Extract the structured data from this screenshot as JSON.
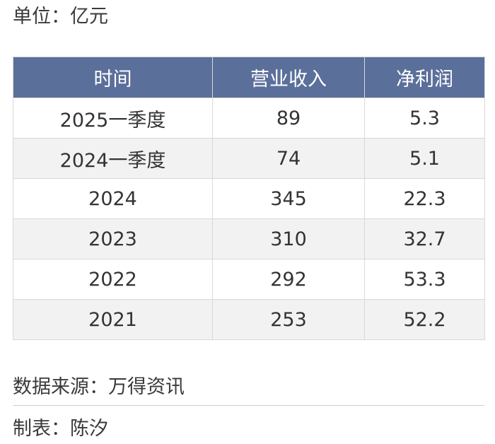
{
  "unit_label": "单位：亿元",
  "chart_data": {
    "type": "table",
    "columns": [
      "时间",
      "营业收入",
      "净利润"
    ],
    "rows": [
      [
        "2025一季度",
        "89",
        "5.3"
      ],
      [
        "2024一季度",
        "74",
        "5.1"
      ],
      [
        "2024",
        "345",
        "22.3"
      ],
      [
        "2023",
        "310",
        "32.7"
      ],
      [
        "2022",
        "292",
        "53.3"
      ],
      [
        "2021",
        "253",
        "52.2"
      ]
    ]
  },
  "source_label": "数据来源：万得资讯",
  "maker_label": "制表：陈汐",
  "colors": {
    "header_bg": "#5b6f9b",
    "header_text": "#ffffff",
    "row_alt_bg": "#f2f2f2",
    "border": "#d8d8d8"
  }
}
